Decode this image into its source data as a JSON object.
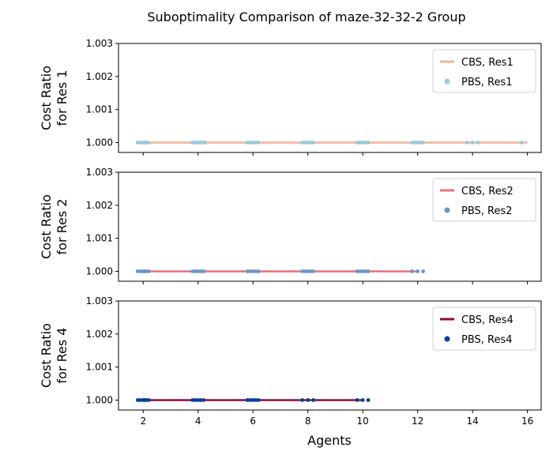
{
  "title": "Suboptimality Comparison of maze-32-32-2 Group",
  "chart_data": {
    "type": "line",
    "title": "Suboptimality Comparison of maze-32-32-2 Group",
    "xlabel": "Agents",
    "xlim": [
      1.1,
      16.5
    ],
    "xticks": [
      2,
      4,
      6,
      8,
      10,
      12,
      14,
      16
    ],
    "shared_x": true,
    "panels": [
      {
        "ylabel": "Cost Ratio\nfor Res 1",
        "ylim": [
          0.9997,
          1.003
        ],
        "yticks": [
          "1.000",
          "1.001",
          "1.002",
          "1.003"
        ],
        "legend_position": "top-right",
        "series": [
          {
            "name": "CBS, Res1",
            "kind": "line",
            "color": "#F4B09A",
            "x": [
              2,
              16
            ],
            "y": [
              1.0,
              1.0
            ]
          },
          {
            "name": "PBS, Res1",
            "kind": "scatter",
            "color": "#9ACAD8",
            "x": [
              1.8,
              1.9,
              2.0,
              2.05,
              2.1,
              2.2,
              3.8,
              3.9,
              4.0,
              4.1,
              4.2,
              4.25,
              5.8,
              5.9,
              6.0,
              6.1,
              6.2,
              7.8,
              7.9,
              8.0,
              8.1,
              8.2,
              9.8,
              9.9,
              10.0,
              10.1,
              10.2,
              11.8,
              11.9,
              12.0,
              12.1,
              12.2,
              13.8,
              14.0,
              14.2,
              15.8
            ],
            "y": [
              1.0,
              1.0,
              1.0,
              1.0,
              1.0,
              1.0,
              1.0,
              1.0,
              1.0,
              1.0,
              1.0,
              1.0,
              1.0,
              1.0,
              1.0,
              1.0,
              1.0,
              1.0,
              1.0,
              1.0,
              1.0,
              1.0,
              1.0,
              1.0,
              1.0,
              1.0,
              1.0,
              1.0,
              1.0,
              1.0,
              1.0,
              1.0,
              1.0,
              1.0,
              1.0,
              1.0
            ]
          }
        ]
      },
      {
        "ylabel": "Cost Ratio\nfor Res 2",
        "ylim": [
          0.9997,
          1.003
        ],
        "yticks": [
          "1.000",
          "1.001",
          "1.002",
          "1.003"
        ],
        "legend_position": "top-right",
        "series": [
          {
            "name": "CBS, Res2",
            "kind": "line",
            "color": "#E8707C",
            "x": [
              2,
              12
            ],
            "y": [
              1.0,
              1.0
            ]
          },
          {
            "name": "PBS, Res2",
            "kind": "scatter",
            "color": "#6C97C4",
            "x": [
              1.8,
              1.9,
              2.0,
              2.05,
              2.1,
              2.2,
              3.8,
              3.9,
              4.0,
              4.1,
              4.2,
              5.8,
              5.9,
              6.0,
              6.1,
              6.2,
              7.8,
              7.9,
              8.0,
              8.1,
              8.2,
              9.8,
              9.9,
              10.0,
              10.1,
              10.2,
              11.8,
              12.0,
              12.2
            ],
            "y": [
              1.0,
              1.0,
              1.0,
              1.0,
              1.0,
              1.0,
              1.0,
              1.0,
              1.0,
              1.0,
              1.0,
              1.0,
              1.0,
              1.0,
              1.0,
              1.0,
              1.0,
              1.0,
              1.0,
              1.0,
              1.0,
              1.0,
              1.0,
              1.0,
              1.0,
              1.0,
              1.0,
              1.0,
              1.0
            ]
          }
        ]
      },
      {
        "ylabel": "Cost Ratio\nfor Res 4",
        "ylim": [
          0.9997,
          1.003
        ],
        "yticks": [
          "1.000",
          "1.001",
          "1.002",
          "1.003"
        ],
        "legend_position": "top-right",
        "series": [
          {
            "name": "CBS, Res4",
            "kind": "line",
            "color": "#8B0A3E",
            "x": [
              2,
              10
            ],
            "y": [
              1.0,
              1.0
            ]
          },
          {
            "name": "PBS, Res4",
            "kind": "scatter",
            "color": "#0A3F9C",
            "x": [
              1.8,
              1.9,
              2.0,
              2.05,
              2.1,
              2.2,
              3.8,
              3.9,
              4.0,
              4.1,
              4.2,
              5.8,
              5.9,
              6.0,
              6.1,
              6.2,
              7.8,
              8.0,
              8.2,
              9.8,
              10.0,
              10.2
            ],
            "y": [
              1.0,
              1.0,
              1.0,
              1.0,
              1.0,
              1.0,
              1.0,
              1.0,
              1.0,
              1.0,
              1.0,
              1.0,
              1.0,
              1.0,
              1.0,
              1.0,
              1.0,
              1.0,
              1.0,
              1.0,
              1.0,
              1.0
            ]
          }
        ]
      }
    ]
  }
}
